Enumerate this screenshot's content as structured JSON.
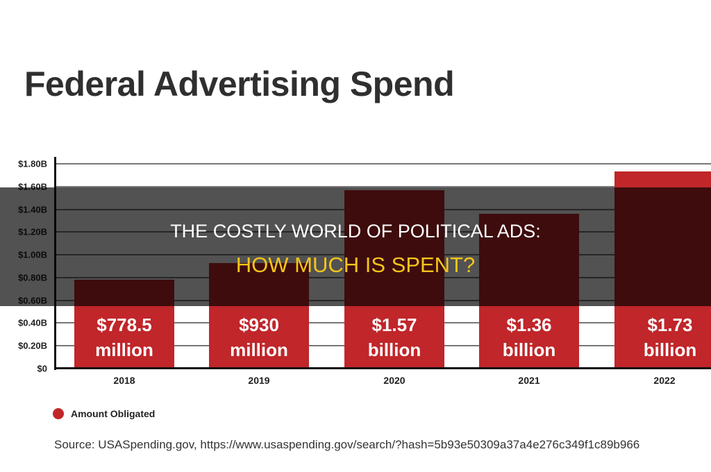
{
  "chart_data": {
    "type": "bar",
    "title": "Federal Advertising Spend",
    "categories": [
      "2018",
      "2019",
      "2020",
      "2021",
      "2022"
    ],
    "values": [
      0.7785,
      0.93,
      1.57,
      1.36,
      1.73
    ],
    "value_units": "billion USD",
    "data_labels": [
      "$778.5 million",
      "$930 million",
      "$1.57 billion",
      "$1.36 billion",
      "$1.73 billion"
    ],
    "yticks": [
      "$0",
      "$0.20B",
      "$0.40B",
      "$0.60B",
      "$0.80B",
      "$1.00B",
      "$1.20B",
      "$1.40B",
      "$1.60B",
      "$1.80B"
    ],
    "ylim": [
      0,
      1.8
    ],
    "grid": true,
    "legend": {
      "placement": "bottom-left",
      "entries": [
        "Amount Obligated"
      ]
    },
    "series_color": "#c0262a",
    "source": "Source: USASpending.gov, https://www.usaspending.gov/search/?hash=5b93e50309a37a4e276c349f1c89b966"
  },
  "overlay": {
    "line1": "THE COSTLY WORLD OF POLITICAL ADS:",
    "line2": "HOW MUCH IS SPENT?",
    "line2_color": "#f5c518"
  }
}
